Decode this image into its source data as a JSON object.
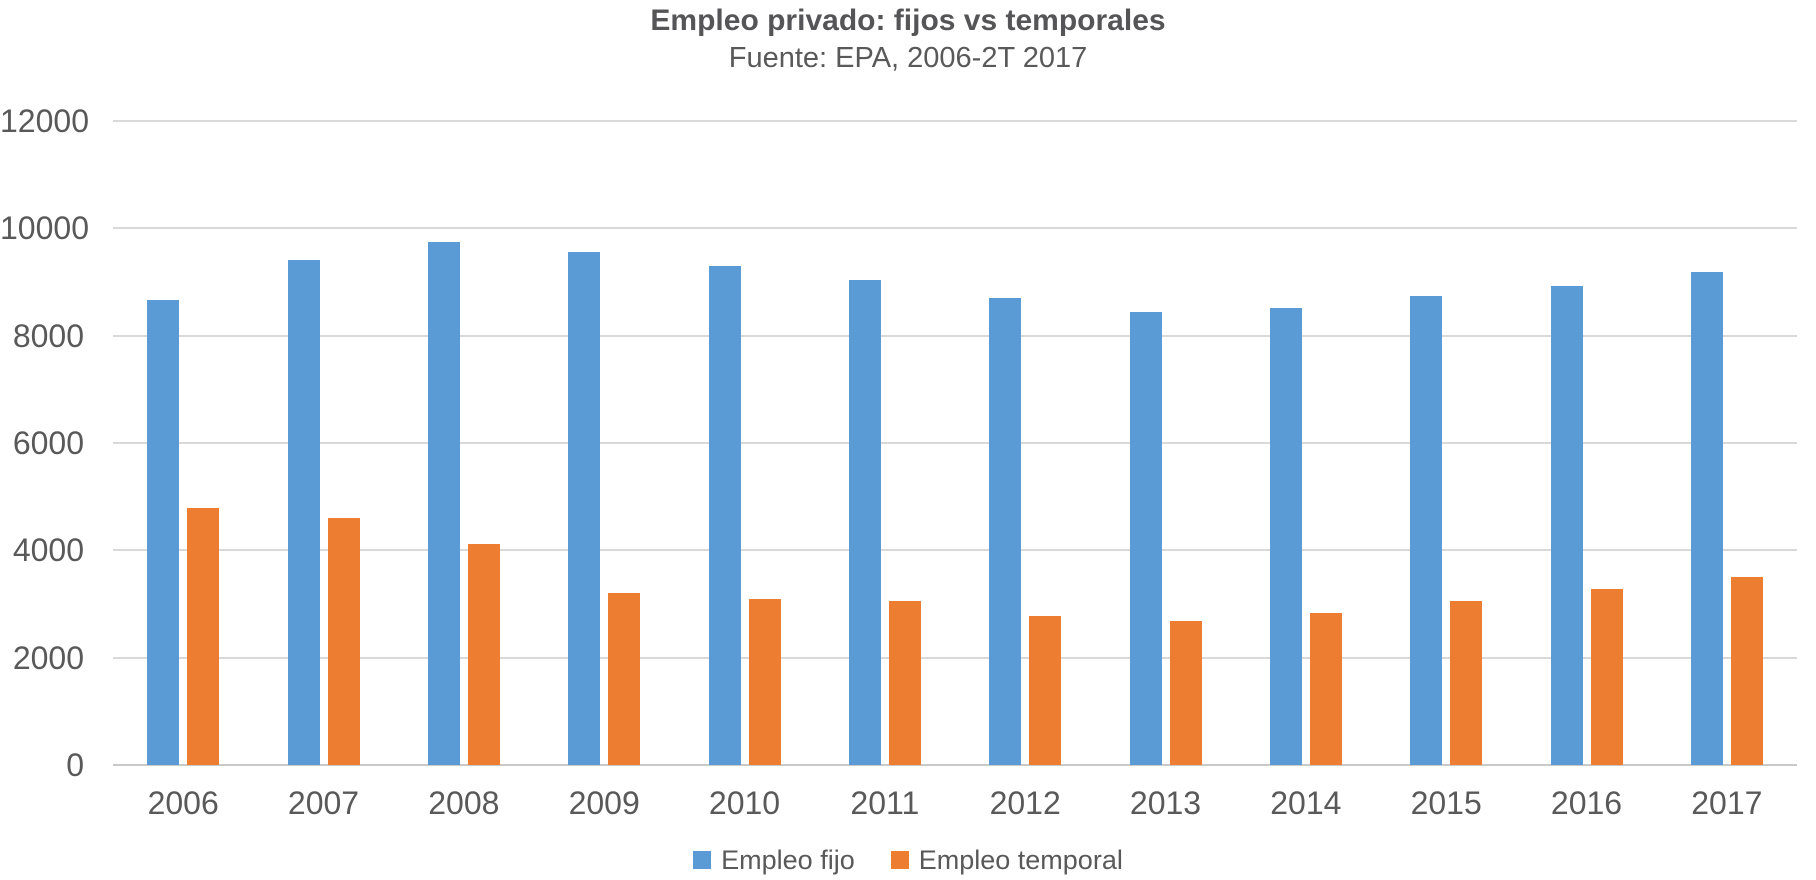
{
  "chart": {
    "title": "Empleo privado: fijos vs temporales",
    "subtitle": "Fuente: EPA, 2006-2T 2017"
  },
  "chart_data": {
    "type": "bar",
    "title": "Empleo privado: fijos vs temporales",
    "subtitle": "Fuente: EPA, 2006-2T 2017",
    "categories": [
      "2006",
      "2007",
      "2008",
      "2009",
      "2010",
      "2011",
      "2012",
      "2013",
      "2014",
      "2015",
      "2016",
      "2017"
    ],
    "series": [
      {
        "name": "Empleo fijo",
        "color": "#5B9BD5",
        "values": [
          8660,
          9410,
          9750,
          9550,
          9300,
          9040,
          8700,
          8440,
          8520,
          8740,
          8930,
          9190
        ]
      },
      {
        "name": "Empleo temporal",
        "color": "#ED7D31",
        "values": [
          4780,
          4600,
          4110,
          3210,
          3100,
          3060,
          2770,
          2690,
          2840,
          3060,
          3280,
          3500
        ]
      }
    ],
    "ylim": [
      0,
      12000
    ],
    "yticks": [
      0,
      2000,
      4000,
      6000,
      8000,
      10000,
      12000
    ],
    "grid": "horizontal",
    "legend_position": "bottom",
    "gridline_color": "#D9D9D9",
    "axis_text_color": "#595959"
  }
}
